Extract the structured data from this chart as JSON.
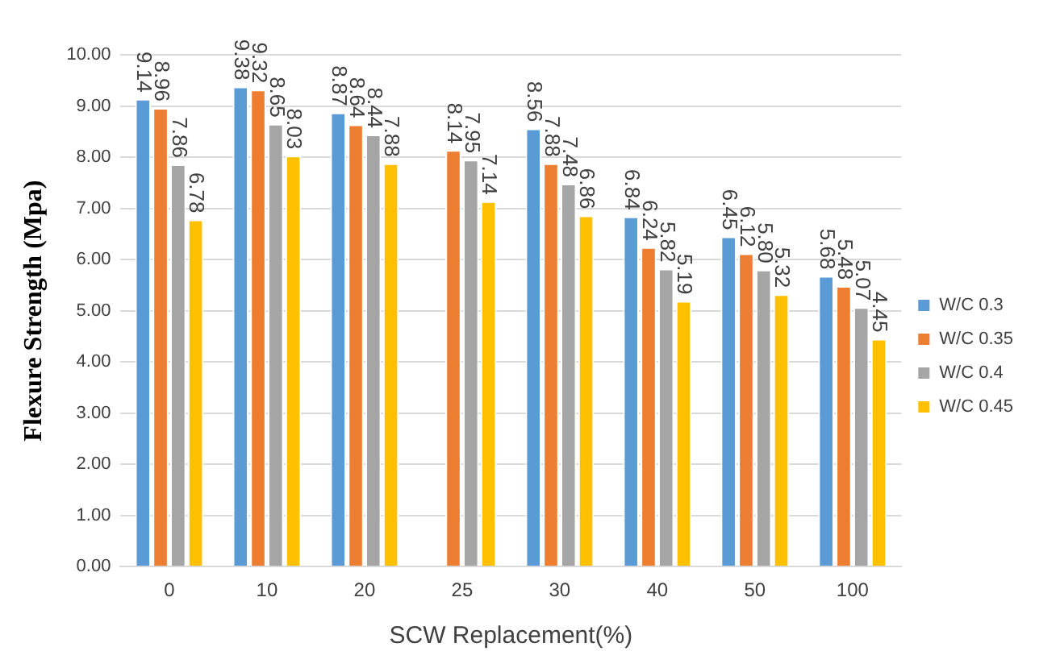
{
  "chart_data": {
    "type": "bar",
    "xlabel": "SCW Replacement(%)",
    "ylabel": "Flexure Strength (Mpa)",
    "categories": [
      "0",
      "10",
      "20",
      "25",
      "30",
      "40",
      "50",
      "100"
    ],
    "series": [
      {
        "name": "W/C 0.3",
        "color": "#5b9bd5",
        "values": [
          9.14,
          9.38,
          8.87,
          null,
          8.56,
          6.84,
          6.45,
          5.68
        ],
        "value_labels": [
          "9.14",
          "9.38",
          "8.87",
          null,
          "8.56",
          "6.84",
          "6.45",
          "5.68"
        ]
      },
      {
        "name": "W/C 0.35",
        "color": "#ed7d31",
        "values": [
          8.96,
          9.32,
          8.64,
          8.14,
          7.88,
          6.24,
          6.12,
          5.48
        ],
        "value_labels": [
          "8.96",
          "9.32",
          "8.64",
          "8.14",
          "7.88",
          "6.24",
          "6.12",
          "5.48"
        ]
      },
      {
        "name": "W/C 0.4",
        "color": "#a5a5a5",
        "values": [
          7.86,
          8.65,
          8.44,
          7.95,
          7.48,
          5.82,
          5.8,
          5.07
        ],
        "value_labels": [
          "7.86",
          "8.65",
          "8.44",
          "7.95",
          "7.48",
          "5.82",
          "5.80",
          "5.07"
        ]
      },
      {
        "name": "W/C 0.45",
        "color": "#ffc000",
        "values": [
          6.78,
          8.03,
          7.88,
          7.14,
          6.86,
          5.19,
          5.32,
          4.45
        ],
        "value_labels": [
          "6.78",
          "8.03",
          "7.88",
          "7.14",
          "6.86",
          "5.19",
          "5.32",
          "4.45"
        ]
      }
    ],
    "ylim": [
      0,
      10
    ],
    "yticks": [
      {
        "value": 0,
        "label": "0.00"
      },
      {
        "value": 1,
        "label": "1.00"
      },
      {
        "value": 2,
        "label": "2.00"
      },
      {
        "value": 3,
        "label": "3.00"
      },
      {
        "value": 4,
        "label": "4.00"
      },
      {
        "value": 5,
        "label": "5.00"
      },
      {
        "value": 6,
        "label": "6.00"
      },
      {
        "value": 7,
        "label": "7.00"
      },
      {
        "value": 8,
        "label": "8.00"
      },
      {
        "value": 9,
        "label": "9.00"
      },
      {
        "value": 10,
        "label": "10.00"
      }
    ],
    "grid": "y",
    "legend": "right"
  }
}
